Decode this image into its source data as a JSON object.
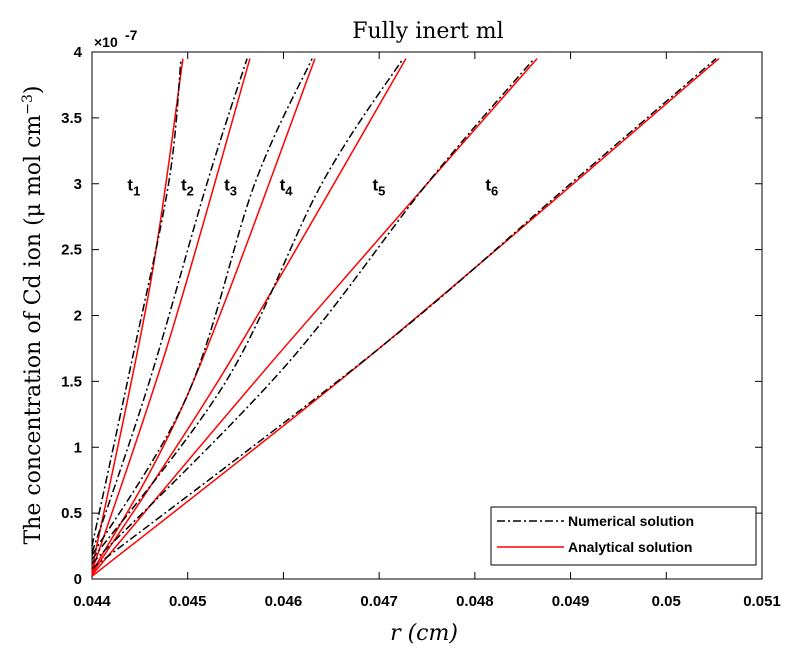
{
  "chart_data": {
    "type": "line",
    "title": "Fully inert ml",
    "xlabel": "r  (cm)",
    "ylabel": "The concentration of Cd ion (μ mol cm",
    "ylabel_exponent": "−3",
    "y_multiplier": "×10",
    "y_multiplier_exponent": "-7",
    "xlim": [
      0.044,
      0.051
    ],
    "ylim": [
      0,
      4
    ],
    "x_ticks": [
      "0.044",
      "0.045",
      "0.046",
      "0.047",
      "0.048",
      "0.049",
      "0.05",
      "0.051"
    ],
    "y_ticks": [
      "0",
      "0.5",
      "1",
      "1.5",
      "2",
      "2.5",
      "3",
      "3.5",
      "4"
    ],
    "grid": false,
    "legend_position": "bottom-right",
    "series": [
      {
        "name": "Numerical solution",
        "color": "#000000",
        "style": "dash-dot"
      },
      {
        "name": "Analytical solution",
        "color": "#ff0000",
        "style": "solid"
      }
    ],
    "curves": [
      {
        "label": "t",
        "sub": "1",
        "label_at": [
          0.04437,
          2.95
        ],
        "numerical": [
          [
            0.044,
            0.25
          ],
          [
            0.0444,
            1.6
          ],
          [
            0.0448,
            3.0
          ],
          [
            0.04493,
            3.95
          ]
        ],
        "analytical": [
          [
            0.044,
            0.08
          ],
          [
            0.0446,
            2.2
          ],
          [
            0.04495,
            3.95
          ]
        ]
      },
      {
        "label": "t",
        "sub": "2",
        "label_at": [
          0.04493,
          2.95
        ],
        "numerical": [
          [
            0.044,
            0.2
          ],
          [
            0.0446,
            1.5
          ],
          [
            0.0452,
            3.0
          ],
          [
            0.04562,
            3.95
          ]
        ],
        "analytical": [
          [
            0.044,
            0.06
          ],
          [
            0.0448,
            1.8
          ],
          [
            0.04565,
            3.95
          ]
        ]
      },
      {
        "label": "t",
        "sub": "3",
        "label_at": [
          0.04538,
          2.95
        ],
        "numerical": [
          [
            0.044,
            0.18
          ],
          [
            0.045,
            1.4
          ],
          [
            0.0457,
            3.0
          ],
          [
            0.0463,
            3.95
          ]
        ],
        "analytical": [
          [
            0.044,
            0.05
          ],
          [
            0.045,
            1.4
          ],
          [
            0.04633,
            3.95
          ]
        ]
      },
      {
        "label": "t",
        "sub": "4",
        "label_at": [
          0.04596,
          2.95
        ],
        "numerical": [
          [
            0.044,
            0.15
          ],
          [
            0.0454,
            1.5
          ],
          [
            0.0464,
            3.0
          ],
          [
            0.04725,
            3.95
          ]
        ],
        "analytical": [
          [
            0.044,
            0.04
          ],
          [
            0.0454,
            1.6
          ],
          [
            0.04728,
            3.95
          ]
        ]
      },
      {
        "label": "t",
        "sub": "5",
        "label_at": [
          0.04693,
          2.95
        ],
        "numerical": [
          [
            0.044,
            0.12
          ],
          [
            0.046,
            1.6
          ],
          [
            0.0475,
            3.0
          ],
          [
            0.04862,
            3.95
          ]
        ],
        "analytical": [
          [
            0.044,
            0.03
          ],
          [
            0.046,
            1.75
          ],
          [
            0.04865,
            3.95
          ]
        ]
      },
      {
        "label": "t",
        "sub": "6",
        "label_at": [
          0.04811,
          2.95
        ],
        "numerical": [
          [
            0.044,
            0.08
          ],
          [
            0.047,
            1.75
          ],
          [
            0.049,
            3.0
          ],
          [
            0.05052,
            3.95
          ]
        ],
        "analytical": [
          [
            0.044,
            0.02
          ],
          [
            0.047,
            1.75
          ],
          [
            0.05055,
            3.95
          ]
        ]
      }
    ]
  }
}
